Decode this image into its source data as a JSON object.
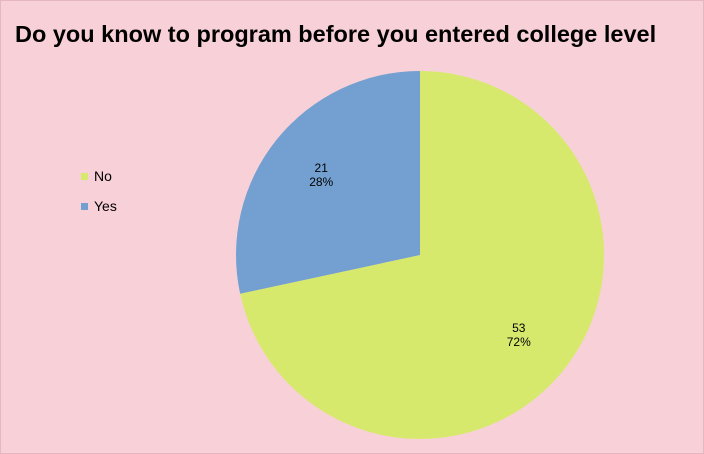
{
  "chart_data": {
    "type": "pie",
    "title": "Do you know to program before you entered college level",
    "categories": [
      "No",
      "Yes"
    ],
    "values": [
      53,
      21
    ],
    "percent_labels": [
      "72%",
      "28%"
    ],
    "colors": [
      "#d7e96d",
      "#73a0d0"
    ],
    "background": "#f8d0d8",
    "legend_position": "left",
    "start_angle": "12 o'clock, clockwise"
  }
}
